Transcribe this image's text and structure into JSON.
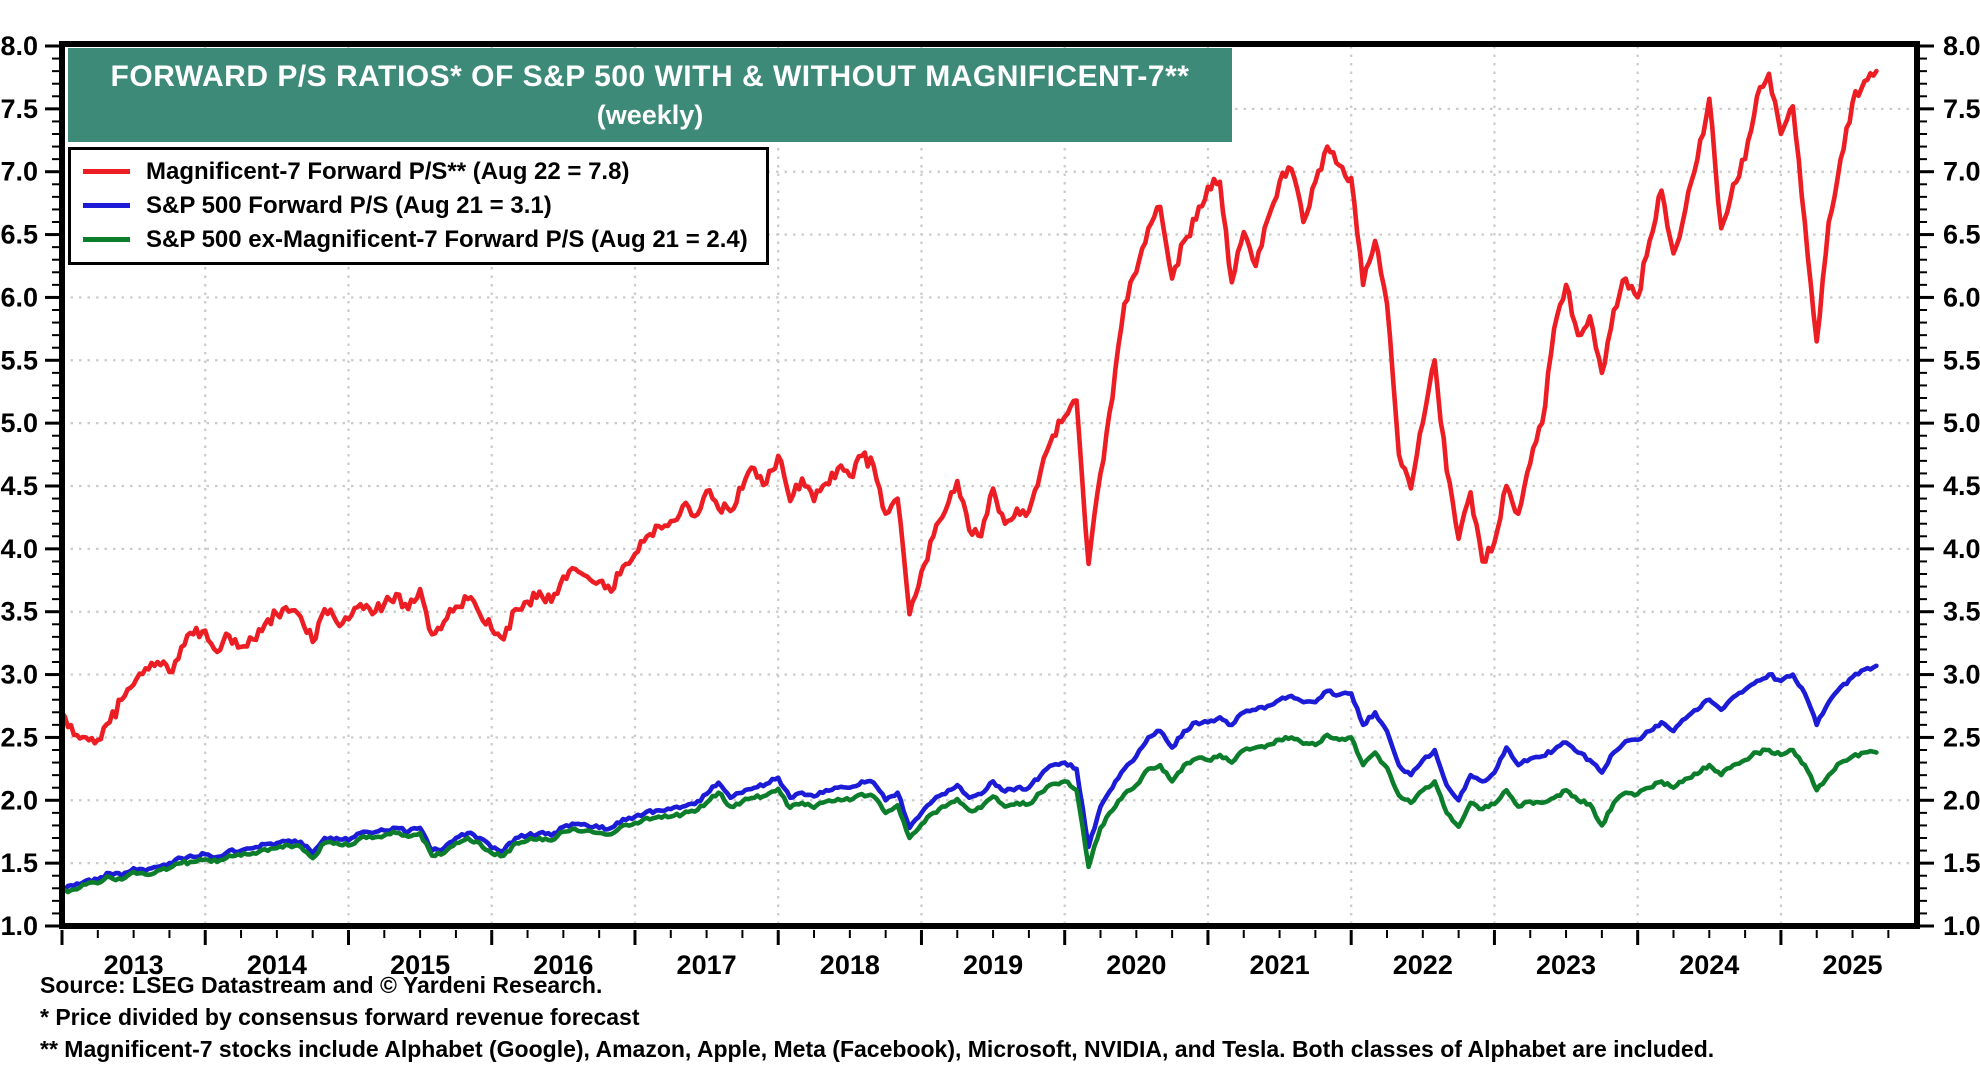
{
  "title": {
    "line1": "FORWARD P/S RATIOS* OF S&P 500 WITH & WITHOUT MAGNIFICENT-7**",
    "line2": "(weekly)",
    "banner_bg": "#3E8A79",
    "banner_fg": "#FFFFFF"
  },
  "legend": [
    {
      "label": "Magnificent-7 Forward P/S** (Aug 22 = 7.8)",
      "color": "#EC1E24"
    },
    {
      "label": "S&P 500 Forward P/S (Aug 21 = 3.1)",
      "color": "#1C1CD6"
    },
    {
      "label": "S&P 500 ex-Magnificent-7 Forward P/S (Aug 21 = 2.4)",
      "color": "#0C7D2B"
    }
  ],
  "footnotes": [
    "Source: LSEG Datastream and © Yardeni Research.",
    "* Price divided by consensus forward revenue forecast",
    "** Magnificent-7 stocks include Alphabet (Google), Amazon, Apple, Meta (Facebook), Microsoft, NVIDIA, and Tesla. Both classes of Alphabet are included."
  ],
  "chart_data": {
    "type": "line",
    "title": "FORWARD P/S RATIOS* OF S&P 500 WITH & WITHOUT MAGNIFICENT-7** (weekly)",
    "x_start_year": 2013.0,
    "x_points_per_year": 12,
    "x_end_year": 2025.67,
    "x_axis_right_edge": 2025.95,
    "x_year_labels": [
      "2013",
      "2014",
      "2015",
      "2016",
      "2017",
      "2018",
      "2019",
      "2020",
      "2021",
      "2022",
      "2023",
      "2024",
      "2025"
    ],
    "ylim": [
      1.0,
      8.0
    ],
    "ytick_step": 0.5,
    "y_tick_labels": [
      "1.0",
      "1.5",
      "2.0",
      "2.5",
      "3.0",
      "3.5",
      "4.0",
      "4.5",
      "5.0",
      "5.5",
      "6.0",
      "6.5",
      "7.0",
      "7.5",
      "8.0"
    ],
    "grid": {
      "vertical": "dotted at each January",
      "horizontal": "dotted every 0.5",
      "color": "#CBCBCB"
    },
    "legend_position": "top-left",
    "axis_color": "#000000",
    "series": [
      {
        "name": "Magnificent-7 Forward P/S",
        "color": "#EC1E24",
        "last_point_label": "Aug 22 = 7.8",
        "jitter": 0.05,
        "values": [
          2.7,
          2.52,
          2.5,
          2.48,
          2.62,
          2.8,
          2.92,
          3.05,
          3.1,
          3.02,
          3.22,
          3.32,
          3.35,
          3.18,
          3.31,
          3.22,
          3.28,
          3.4,
          3.48,
          3.5,
          3.46,
          3.26,
          3.52,
          3.42,
          3.44,
          3.56,
          3.48,
          3.56,
          3.64,
          3.52,
          3.68,
          3.32,
          3.42,
          3.54,
          3.6,
          3.48,
          3.36,
          3.28,
          3.52,
          3.58,
          3.66,
          3.58,
          3.78,
          3.84,
          3.78,
          3.74,
          3.66,
          3.86,
          3.96,
          4.1,
          4.18,
          4.22,
          4.34,
          4.26,
          4.46,
          4.32,
          4.3,
          4.48,
          4.64,
          4.52,
          4.74,
          4.38,
          4.56,
          4.38,
          4.52,
          4.64,
          4.58,
          4.74,
          4.66,
          4.28,
          4.4,
          3.48,
          3.82,
          4.1,
          4.3,
          4.54,
          4.15,
          4.1,
          4.48,
          4.2,
          4.32,
          4.3,
          4.62,
          4.9,
          5.05,
          5.18,
          3.88,
          4.6,
          5.2,
          5.95,
          6.2,
          6.55,
          6.72,
          6.15,
          6.45,
          6.62,
          6.88,
          6.92,
          6.12,
          6.52,
          6.25,
          6.62,
          6.92,
          7.02,
          6.6,
          6.92,
          7.2,
          7.05,
          6.95,
          6.1,
          6.45,
          5.95,
          4.75,
          4.48,
          5.0,
          5.5,
          4.62,
          4.08,
          4.45,
          3.9,
          4.05,
          4.5,
          4.28,
          4.68,
          5.0,
          5.75,
          6.1,
          5.7,
          5.85,
          5.4,
          5.9,
          6.15,
          6.0,
          6.45,
          6.85,
          6.35,
          6.7,
          7.1,
          7.58,
          6.55,
          6.9,
          7.1,
          7.6,
          7.78,
          7.3,
          7.52,
          6.6,
          5.65,
          6.6,
          7.1,
          7.55,
          7.72,
          7.8
        ]
      },
      {
        "name": "S&P 500 Forward P/S",
        "color": "#1C1CD6",
        "last_point_label": "Aug 21 = 3.1",
        "jitter": 0.015,
        "values": [
          1.3,
          1.32,
          1.36,
          1.37,
          1.42,
          1.4,
          1.46,
          1.44,
          1.47,
          1.5,
          1.54,
          1.55,
          1.57,
          1.55,
          1.6,
          1.6,
          1.62,
          1.65,
          1.66,
          1.68,
          1.67,
          1.58,
          1.7,
          1.7,
          1.68,
          1.74,
          1.74,
          1.76,
          1.78,
          1.75,
          1.78,
          1.6,
          1.62,
          1.7,
          1.74,
          1.7,
          1.62,
          1.6,
          1.7,
          1.72,
          1.74,
          1.72,
          1.79,
          1.81,
          1.8,
          1.78,
          1.78,
          1.85,
          1.87,
          1.91,
          1.92,
          1.93,
          1.95,
          1.97,
          2.05,
          2.14,
          2.02,
          2.06,
          2.1,
          2.13,
          2.18,
          2.02,
          2.06,
          2.03,
          2.08,
          2.1,
          2.1,
          2.15,
          2.14,
          2.0,
          2.06,
          1.78,
          1.9,
          2.0,
          2.05,
          2.12,
          2.02,
          2.05,
          2.15,
          2.07,
          2.1,
          2.1,
          2.2,
          2.28,
          2.3,
          2.25,
          1.63,
          1.95,
          2.1,
          2.25,
          2.35,
          2.5,
          2.55,
          2.42,
          2.55,
          2.62,
          2.62,
          2.66,
          2.6,
          2.7,
          2.72,
          2.75,
          2.8,
          2.83,
          2.78,
          2.78,
          2.87,
          2.84,
          2.85,
          2.6,
          2.7,
          2.55,
          2.28,
          2.2,
          2.32,
          2.4,
          2.12,
          2.0,
          2.2,
          2.15,
          2.22,
          2.42,
          2.28,
          2.33,
          2.35,
          2.4,
          2.46,
          2.38,
          2.32,
          2.22,
          2.38,
          2.47,
          2.48,
          2.55,
          2.62,
          2.55,
          2.65,
          2.72,
          2.8,
          2.72,
          2.82,
          2.88,
          2.95,
          3.0,
          2.95,
          3.0,
          2.85,
          2.6,
          2.78,
          2.9,
          2.98,
          3.04,
          3.07
        ]
      },
      {
        "name": "S&P 500 ex-Magnificent-7 Forward P/S",
        "color": "#0C7D2B",
        "last_point_label": "Aug 21 = 2.4",
        "jitter": 0.015,
        "values": [
          1.27,
          1.29,
          1.33,
          1.34,
          1.39,
          1.37,
          1.43,
          1.41,
          1.44,
          1.46,
          1.5,
          1.51,
          1.53,
          1.51,
          1.56,
          1.56,
          1.58,
          1.61,
          1.62,
          1.64,
          1.63,
          1.54,
          1.66,
          1.66,
          1.64,
          1.7,
          1.7,
          1.72,
          1.74,
          1.71,
          1.74,
          1.56,
          1.58,
          1.66,
          1.7,
          1.66,
          1.58,
          1.56,
          1.66,
          1.68,
          1.7,
          1.68,
          1.75,
          1.77,
          1.76,
          1.74,
          1.73,
          1.8,
          1.82,
          1.86,
          1.87,
          1.87,
          1.89,
          1.91,
          1.98,
          2.06,
          1.95,
          1.99,
          2.02,
          2.04,
          2.09,
          1.94,
          1.98,
          1.94,
          1.99,
          2.01,
          2.0,
          2.05,
          2.03,
          1.9,
          1.96,
          1.7,
          1.81,
          1.9,
          1.95,
          2.01,
          1.92,
          1.94,
          2.03,
          1.95,
          1.98,
          1.97,
          2.06,
          2.13,
          2.15,
          2.08,
          1.47,
          1.78,
          1.92,
          2.05,
          2.12,
          2.25,
          2.28,
          2.15,
          2.28,
          2.33,
          2.32,
          2.36,
          2.3,
          2.4,
          2.42,
          2.44,
          2.48,
          2.5,
          2.45,
          2.44,
          2.52,
          2.48,
          2.5,
          2.28,
          2.38,
          2.26,
          2.04,
          1.98,
          2.08,
          2.15,
          1.9,
          1.79,
          1.98,
          1.93,
          1.97,
          2.08,
          1.95,
          1.99,
          1.98,
          2.02,
          2.08,
          2.0,
          1.97,
          1.8,
          1.98,
          2.06,
          2.05,
          2.1,
          2.15,
          2.1,
          2.17,
          2.21,
          2.28,
          2.2,
          2.28,
          2.32,
          2.38,
          2.4,
          2.36,
          2.4,
          2.28,
          2.08,
          2.2,
          2.3,
          2.35,
          2.38,
          2.38
        ]
      }
    ]
  }
}
